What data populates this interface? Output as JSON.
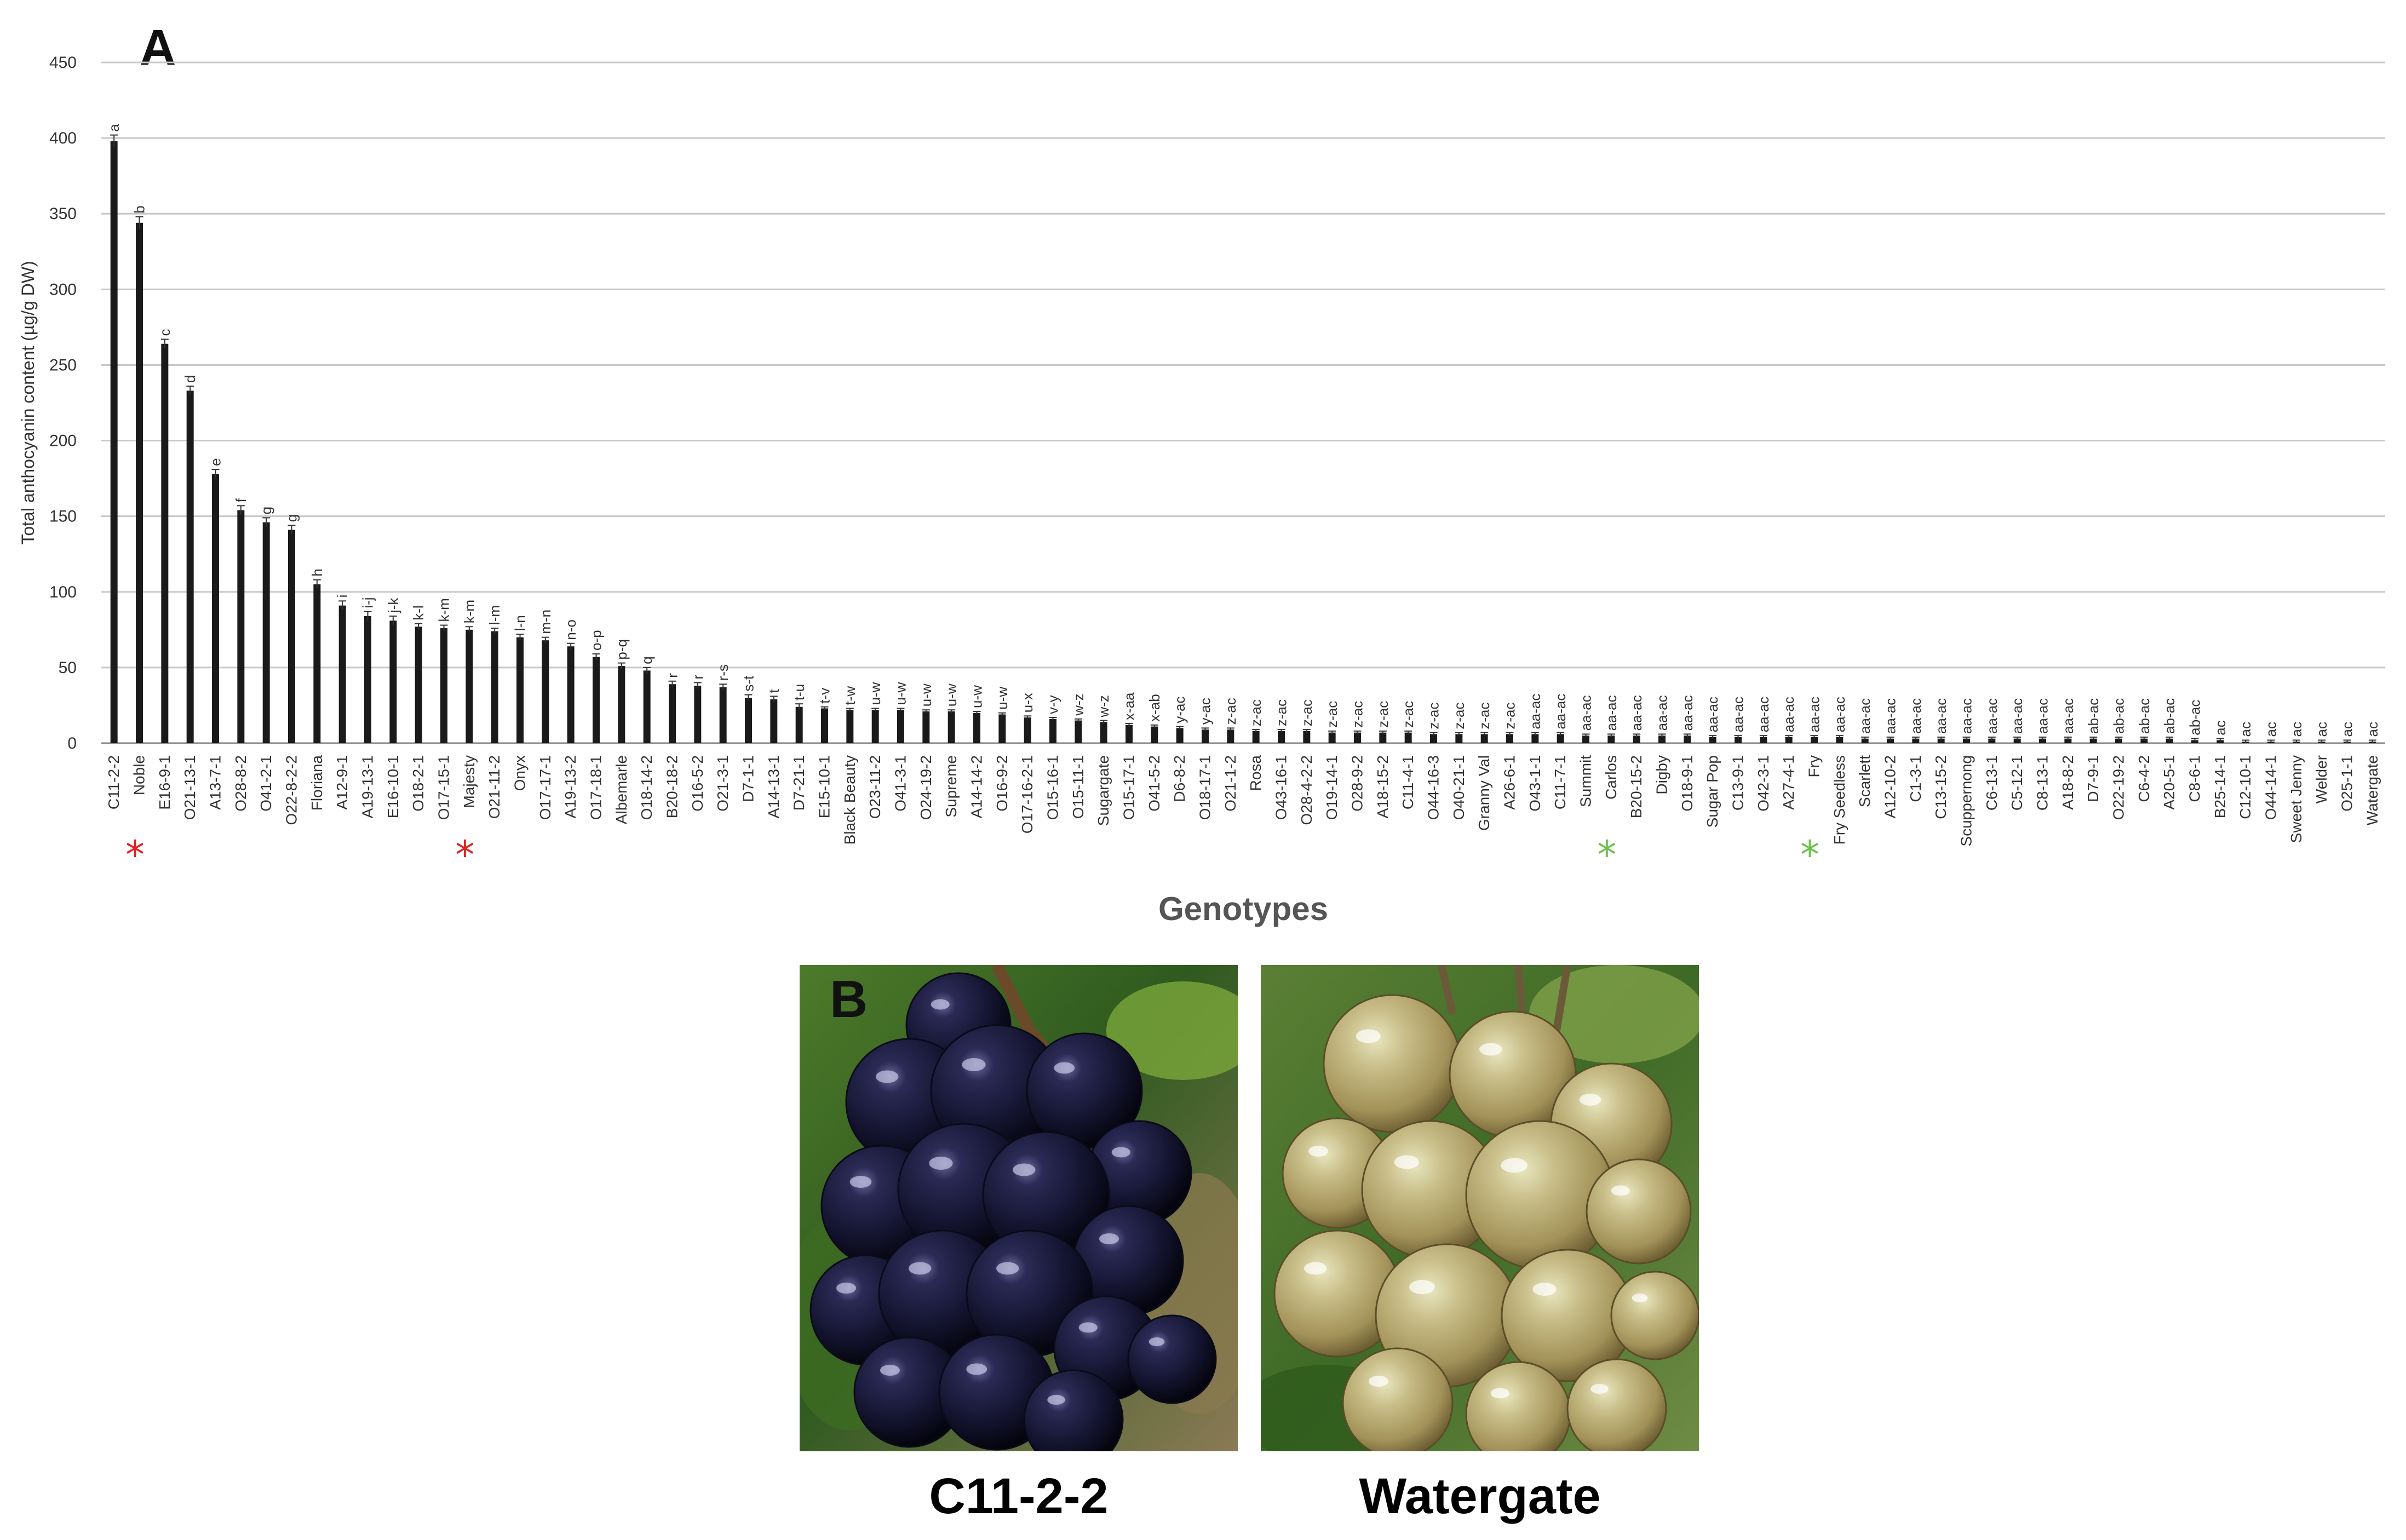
{
  "panel_a_label": "A",
  "panel_b_label": "B",
  "chart_data": {
    "type": "bar",
    "ylabel": "Total anthocyanin content (µg/g DW)",
    "xlabel": "Genotypes",
    "ylim": [
      0,
      450
    ],
    "yticks": [
      0,
      50,
      100,
      150,
      200,
      250,
      300,
      350,
      400,
      450
    ],
    "grid": true,
    "categories": [
      "C11-2-2",
      "Noble",
      "E16-9-1",
      "O21-13-1",
      "A13-7-1",
      "O28-8-2",
      "O41-2-1",
      "O22-8-2-2",
      "Floriana",
      "A12-9-1",
      "A19-13-1",
      "E16-10-1",
      "O18-2-1",
      "O17-15-1",
      "Majesty",
      "O21-11-2",
      "Onyx",
      "O17-17-1",
      "A19-13-2",
      "O17-18-1",
      "Albemarle",
      "O18-14-2",
      "B20-18-2",
      "O16-5-2",
      "O21-3-1",
      "D7-1-1",
      "A14-13-1",
      "D7-21-1",
      "E15-10-1",
      "Black Beauty",
      "O23-11-2",
      "O41-3-1",
      "O24-19-2",
      "Supreme",
      "A14-14-2",
      "O16-9-2",
      "O17-16-2-1",
      "O15-16-1",
      "O15-11-1",
      "Sugargate",
      "O15-17-1",
      "O41-5-2",
      "D6-8-2",
      "O18-17-1",
      "O21-1-2",
      "Rosa",
      "O43-16-1",
      "O28-4-2-2",
      "O19-14-1",
      "O28-9-2",
      "A18-15-2",
      "C11-4-1",
      "O44-16-3",
      "O40-21-1",
      "Granny Val",
      "A26-6-1",
      "O43-1-1",
      "C11-7-1",
      "Summit",
      "Carlos",
      "B20-15-2",
      "Digby",
      "O18-9-1",
      "Sugar Pop",
      "C13-9-1",
      "O42-3-1",
      "A27-4-1",
      "Fry",
      "Fry Seedless",
      "Scarlett",
      "A12-10-2",
      "C1-3-1",
      "C13-15-2",
      "Scuppernong",
      "C6-13-1",
      "C5-12-1",
      "C8-13-1",
      "A18-8-2",
      "D7-9-1",
      "O22-19-2",
      "C6-4-2",
      "A20-5-1",
      "C8-6-1",
      "B25-14-1",
      "C12-10-1",
      "O44-14-1",
      "Sweet Jenny",
      "Welder",
      "O25-1-1",
      "Watergate"
    ],
    "values": [
      398,
      344,
      264,
      233,
      178,
      154,
      146,
      141,
      105,
      91,
      84,
      81,
      77,
      76,
      75,
      74,
      70,
      68,
      64,
      57,
      51,
      48,
      39,
      38,
      37,
      30,
      29,
      24,
      23,
      22,
      22,
      22,
      21,
      21,
      20,
      19,
      17,
      16,
      15,
      14,
      12,
      11,
      10,
      9,
      9,
      8,
      8,
      8,
      7,
      7,
      7,
      7,
      6,
      6,
      6,
      6,
      6,
      6,
      5,
      5,
      5,
      5,
      5,
      4,
      4,
      4,
      4,
      4,
      4,
      3,
      3,
      3,
      3,
      3,
      3,
      3,
      3,
      3,
      3,
      3,
      3,
      3,
      2,
      2,
      1,
      1,
      1,
      1,
      1,
      1
    ],
    "errors": [
      4,
      4,
      3,
      3,
      3,
      3,
      3,
      3,
      3,
      3,
      3,
      3,
      2,
      2,
      2,
      2,
      2,
      2,
      2,
      2,
      2,
      2,
      2,
      2,
      2,
      2,
      2,
      2,
      1,
      1,
      1,
      1,
      1,
      1,
      1,
      1,
      1,
      1,
      1,
      1,
      1,
      1,
      1,
      1,
      1,
      1,
      1,
      1,
      1,
      1,
      1,
      1,
      1,
      1,
      1,
      1,
      1,
      1,
      1,
      1,
      1,
      1,
      1,
      1,
      1,
      1,
      1,
      1,
      1,
      1,
      1,
      1,
      1,
      1,
      1,
      1,
      1,
      1,
      1,
      1,
      1,
      1,
      1,
      1,
      1,
      1,
      1,
      1,
      1,
      1
    ],
    "significance": [
      "a",
      "b",
      "c",
      "d",
      "e",
      "f",
      "g",
      "g",
      "h",
      "i",
      "i-j",
      "j-k",
      "k-l",
      "k-m",
      "k-m",
      "l-m",
      "l-n",
      "m-n",
      "n-o",
      "o-p",
      "p-q",
      "q",
      "r",
      "r",
      "r-s",
      "s-t",
      "t",
      "t-u",
      "t-v",
      "t-w",
      "u-w",
      "u-w",
      "u-w",
      "u-w",
      "u-w",
      "u-w",
      "u-x",
      "v-y",
      "w-z",
      "w-z",
      "x-aa",
      "x-ab",
      "y-ac",
      "y-ac",
      "z-ac",
      "z-ac",
      "z-ac",
      "z-ac",
      "z-ac",
      "z-ac",
      "z-ac",
      "z-ac",
      "z-ac",
      "z-ac",
      "z-ac",
      "z-ac",
      "aa-ac",
      "aa-ac",
      "aa-ac",
      "aa-ac",
      "aa-ac",
      "aa-ac",
      "aa-ac",
      "aa-ac",
      "aa-ac",
      "aa-ac",
      "aa-ac",
      "aa-ac",
      "aa-ac",
      "aa-ac",
      "aa-ac",
      "aa-ac",
      "aa-ac",
      "aa-ac",
      "aa-ac",
      "aa-ac",
      "aa-ac",
      "aa-ac",
      "ab-ac",
      "ab-ac",
      "ab-ac",
      "ab-ac",
      "ab-ac",
      "ac",
      "ac",
      "ac",
      "ac",
      "ac",
      "ac",
      "ac"
    ],
    "markers": [
      {
        "category": "Noble",
        "symbol": "*",
        "color": "#e02020"
      },
      {
        "category": "Majesty",
        "symbol": "*",
        "color": "#e02020"
      },
      {
        "category": "Carlos",
        "symbol": "*",
        "color": "#6cc24a"
      },
      {
        "category": "Fry",
        "symbol": "*",
        "color": "#6cc24a"
      }
    ],
    "bar_color": "#1a1a1a",
    "grid_color": "#c8c8c8"
  },
  "photos": [
    {
      "caption": "C11-2-2",
      "berry_color": "dark purple"
    },
    {
      "caption": "Watergate",
      "berry_color": "bronze-green"
    }
  ]
}
